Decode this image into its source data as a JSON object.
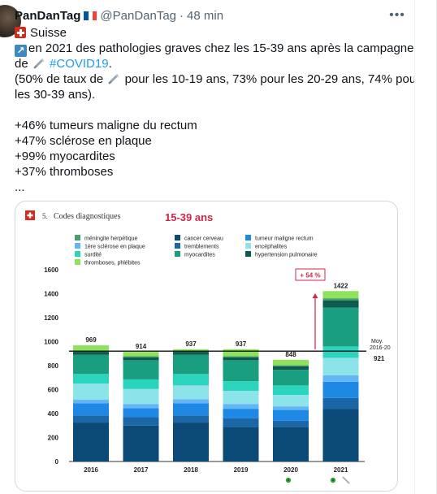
{
  "tweet": {
    "display_name": "PanDanTag",
    "handle": "@PanDanTag",
    "separator": "·",
    "time": "48 min",
    "flag_icon": "flag-france-icon",
    "more_icon": "more-horizontal-icon"
  },
  "body": {
    "line1": "Suisse",
    "line2": "en 2021 des pathologies graves chez les 15-39 ans après la campagne",
    "line3_pre": "de",
    "hashtag": "#COVID19",
    "line3_post": ".",
    "line4_a": "(50% de taux de",
    "line4_b": "pour les 10-19 ans, 73% pour les 20-29 ans, 74% pour",
    "line5": "les 30-39 ans).",
    "line7": "+46% tumeurs maligne du rectum",
    "line8": "+47% sclérose en plaque",
    "line9": "+99% myocardites",
    "line10": "+37% thromboses",
    "line11": "..."
  },
  "colors": {
    "swiss_red": "#d52b1e",
    "france_blue": "#0055a4",
    "france_white": "#ffffff",
    "france_red": "#ef4135",
    "hashtag": "#1d9bf0",
    "annotation_red": "#d0254a"
  },
  "chart_data": {
    "type": "bar",
    "stacked": true,
    "section_label": "5.",
    "subtitle": "Codes diagnostiques",
    "title": "15-39 ans",
    "categories": [
      "2016",
      "2017",
      "2018",
      "2019",
      "2020",
      "2021"
    ],
    "totals": [
      969,
      914,
      937,
      937,
      848,
      1422
    ],
    "ylim": [
      0,
      1600
    ],
    "yticks": [
      0,
      200,
      400,
      600,
      800,
      1000,
      1200,
      1400,
      1600
    ],
    "grid": false,
    "legend_placement": "top",
    "series": [
      {
        "name": "cancer cerveau",
        "color": "#0b4a77",
        "values": [
          325,
          300,
          325,
          290,
          290,
          440
        ]
      },
      {
        "name": "tremblements",
        "color": "#1b66a6",
        "values": [
          60,
          70,
          60,
          70,
          50,
          90
        ]
      },
      {
        "name": "tumeur maligne rectum",
        "color": "#1e88e5",
        "values": [
          100,
          75,
          100,
          80,
          90,
          135
        ]
      },
      {
        "name": "1ère sclérose en plaque",
        "color": "#64b5f6",
        "values": [
          30,
          35,
          35,
          40,
          30,
          55
        ]
      },
      {
        "name": "encéphalites",
        "color": "#8de3ea",
        "values": [
          135,
          125,
          115,
          110,
          95,
          145
        ]
      },
      {
        "name": "surdité",
        "color": "#2ad4bd",
        "values": [
          80,
          80,
          95,
          80,
          80,
          95
        ]
      },
      {
        "name": "myocardites",
        "color": "#1a9e80",
        "values": [
          160,
          160,
          160,
          175,
          130,
          325
        ]
      },
      {
        "name": "hypertension pulmonaire",
        "color": "#0d5a4e",
        "values": [
          25,
          25,
          25,
          25,
          30,
          60
        ]
      },
      {
        "name": "méningite herpétique",
        "color": "#4a9e6e",
        "values": [
          10,
          8,
          8,
          8,
          8,
          17
        ]
      },
      {
        "name": "thromboses, phlébites",
        "color": "#8fe35a",
        "values": [
          44,
          36,
          14,
          59,
          45,
          60
        ]
      }
    ],
    "reference_line": {
      "value": 921,
      "label_1": "Moy.",
      "label_2": "2016-20",
      "value_label": "921"
    },
    "annotation": {
      "label": "+ 54 %"
    }
  }
}
